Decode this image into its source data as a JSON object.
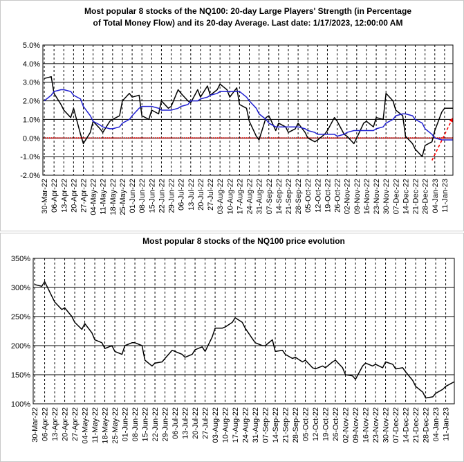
{
  "chart_data": [
    {
      "type": "line",
      "title": [
        "Most popular 8 stocks of the NQ100: 20-day Large Players' Strength (in Percentage",
        "of Total Money Flow) and its 20-day Average. Last date: 1/17/2023, 12:00:00 AM"
      ],
      "x": [
        "2022-03-30",
        "2022-04-04",
        "2022-04-06",
        "2022-04-11",
        "2022-04-13",
        "2022-04-18",
        "2022-04-20",
        "2022-04-25",
        "2022-04-27",
        "2022-05-02",
        "2022-05-04",
        "2022-05-09",
        "2022-05-11",
        "2022-05-16",
        "2022-05-18",
        "2022-05-23",
        "2022-05-25",
        "2022-05-30",
        "2022-06-01",
        "2022-06-06",
        "2022-06-08",
        "2022-06-13",
        "2022-06-15",
        "2022-06-20",
        "2022-06-22",
        "2022-06-27",
        "2022-06-29",
        "2022-07-04",
        "2022-07-06",
        "2022-07-11",
        "2022-07-13",
        "2022-07-18",
        "2022-07-20",
        "2022-07-25",
        "2022-07-27",
        "2022-08-01",
        "2022-08-03",
        "2022-08-08",
        "2022-08-10",
        "2022-08-15",
        "2022-08-17",
        "2022-08-22",
        "2022-08-24",
        "2022-08-29",
        "2022-08-31",
        "2022-09-05",
        "2022-09-07",
        "2022-09-12",
        "2022-09-14",
        "2022-09-19",
        "2022-09-21",
        "2022-09-26",
        "2022-09-28",
        "2022-10-03",
        "2022-10-05",
        "2022-10-10",
        "2022-10-12",
        "2022-10-17",
        "2022-10-19",
        "2022-10-24",
        "2022-10-26",
        "2022-10-31",
        "2022-11-02",
        "2022-11-07",
        "2022-11-09",
        "2022-11-14",
        "2022-11-16",
        "2022-11-21",
        "2022-11-23",
        "2022-11-28",
        "2022-11-30",
        "2022-12-05",
        "2022-12-07",
        "2022-12-12",
        "2022-12-14",
        "2022-12-19",
        "2022-12-21",
        "2022-12-26",
        "2022-12-28",
        "2023-01-02",
        "2023-01-04",
        "2023-01-09",
        "2023-01-11",
        "2023-01-17"
      ],
      "series": [
        {
          "color": "#000000",
          "values": [
            3.2,
            3.3,
            2.4,
            1.8,
            1.5,
            1.1,
            1.6,
            0.2,
            -0.3,
            0.3,
            0.9,
            0.5,
            0.3,
            0.9,
            1.0,
            1.2,
            2.0,
            2.4,
            2.2,
            2.3,
            1.2,
            1.0,
            1.5,
            1.3,
            2.0,
            1.6,
            1.7,
            2.6,
            2.4,
            2.0,
            1.9,
            2.6,
            2.2,
            2.8,
            2.3,
            2.6,
            2.9,
            2.6,
            2.2,
            2.7,
            1.8,
            1.6,
            0.9,
            0.1,
            -0.1,
            1.1,
            1.2,
            0.4,
            0.8,
            0.6,
            0.3,
            0.5,
            0.8,
            0.3,
            0.0,
            -0.2,
            -0.1,
            0.2,
            0.4,
            1.1,
            0.9,
            0.2,
            0.1,
            -0.3,
            0.0,
            0.8,
            0.9,
            0.6,
            1.1,
            1.0,
            2.4,
            2.0,
            1.5,
            1.2,
            0.1,
            -0.3,
            -0.6,
            -1.0,
            -0.4,
            -0.2,
            0.4,
            1.4,
            1.6,
            1.6
          ]
        },
        {
          "color": "#1f1fd0",
          "values": [
            2.0,
            2.3,
            2.5,
            2.6,
            2.6,
            2.5,
            2.3,
            2.1,
            1.7,
            1.2,
            0.9,
            0.7,
            0.6,
            0.5,
            0.5,
            0.6,
            0.8,
            1.0,
            1.2,
            1.6,
            1.7,
            1.7,
            1.7,
            1.6,
            1.5,
            1.5,
            1.5,
            1.6,
            1.7,
            1.8,
            2.0,
            2.0,
            2.1,
            2.2,
            2.3,
            2.4,
            2.5,
            2.5,
            2.5,
            2.5,
            2.5,
            2.2,
            2.0,
            1.6,
            1.3,
            1.0,
            0.8,
            0.6,
            0.6,
            0.6,
            0.6,
            0.6,
            0.6,
            0.5,
            0.4,
            0.3,
            0.2,
            0.2,
            0.2,
            0.2,
            0.1,
            0.2,
            0.3,
            0.4,
            0.4,
            0.4,
            0.4,
            0.4,
            0.5,
            0.6,
            0.8,
            1.0,
            1.2,
            1.3,
            1.3,
            1.2,
            1.0,
            0.8,
            0.5,
            0.2,
            0.0,
            -0.1,
            -0.1,
            -0.1
          ]
        }
      ],
      "reference_line": {
        "y": 0,
        "color": "#e00000"
      },
      "arrow": {
        "x": [
          "2023-01-02",
          "2023-01-17"
        ],
        "y": [
          -1.2,
          1.1
        ],
        "color": "#ff0000"
      },
      "xlim": [
        "2022-03-29",
        "2023-01-17"
      ],
      "xticks": [
        {
          "value": "2022-03-30",
          "label": "30-Mar-22"
        },
        {
          "value": "2022-04-06",
          "label": "06-Apr-22"
        },
        {
          "value": "2022-04-13",
          "label": "13-Apr-22"
        },
        {
          "value": "2022-04-20",
          "label": "20-Apr-22"
        },
        {
          "value": "2022-04-27",
          "label": "27-Apr-22"
        },
        {
          "value": "2022-05-04",
          "label": "04-May-22"
        },
        {
          "value": "2022-05-11",
          "label": "11-May-22"
        },
        {
          "value": "2022-05-18",
          "label": "18-May-22"
        },
        {
          "value": "2022-05-25",
          "label": "25-May-22"
        },
        {
          "value": "2022-06-01",
          "label": "01-Jun-22"
        },
        {
          "value": "2022-06-08",
          "label": "08-Jun-22"
        },
        {
          "value": "2022-06-15",
          "label": "15-Jun-22"
        },
        {
          "value": "2022-06-22",
          "label": "22-Jun-22"
        },
        {
          "value": "2022-06-29",
          "label": "29-Jun-22"
        },
        {
          "value": "2022-07-06",
          "label": "06-Jul-22"
        },
        {
          "value": "2022-07-13",
          "label": "13-Jul-22"
        },
        {
          "value": "2022-07-20",
          "label": "20-Jul-22"
        },
        {
          "value": "2022-07-27",
          "label": "27-Jul-22"
        },
        {
          "value": "2022-08-03",
          "label": "03-Aug-22"
        },
        {
          "value": "2022-08-10",
          "label": "10-Aug-22"
        },
        {
          "value": "2022-08-17",
          "label": "17-Aug-22"
        },
        {
          "value": "2022-08-24",
          "label": "24-Aug-22"
        },
        {
          "value": "2022-08-31",
          "label": "31-Aug-22"
        },
        {
          "value": "2022-09-07",
          "label": "07-Sep-22"
        },
        {
          "value": "2022-09-14",
          "label": "14-Sep-22"
        },
        {
          "value": "2022-09-21",
          "label": "21-Sep-22"
        },
        {
          "value": "2022-09-28",
          "label": "28-Sep-22"
        },
        {
          "value": "2022-10-05",
          "label": "05-Oct-22"
        },
        {
          "value": "2022-10-12",
          "label": "12-Oct-22"
        },
        {
          "value": "2022-10-19",
          "label": "19-Oct-22"
        },
        {
          "value": "2022-10-26",
          "label": "26-Oct-22"
        },
        {
          "value": "2022-11-02",
          "label": "02-Nov-22"
        },
        {
          "value": "2022-11-09",
          "label": "09-Nov-22"
        },
        {
          "value": "2022-11-16",
          "label": "16-Nov-22"
        },
        {
          "value": "2022-11-23",
          "label": "23-Nov-22"
        },
        {
          "value": "2022-11-30",
          "label": "30-Nov-22"
        },
        {
          "value": "2022-12-07",
          "label": "07-Dec-22"
        },
        {
          "value": "2022-12-14",
          "label": "14-Dec-22"
        },
        {
          "value": "2022-12-21",
          "label": "21-Dec-22"
        },
        {
          "value": "2022-12-28",
          "label": "28-Dec-22"
        },
        {
          "value": "2023-01-04",
          "label": "04-Jan-23"
        },
        {
          "value": "2023-01-11",
          "label": "11-Jan-23"
        }
      ],
      "ylim": [
        -2,
        5
      ],
      "yticks": [
        {
          "value": 5,
          "label": "5.0%"
        },
        {
          "value": 4,
          "label": "4.0%"
        },
        {
          "value": 3,
          "label": "3.0%"
        },
        {
          "value": 2,
          "label": "2.0%"
        },
        {
          "value": 1,
          "label": "1.0%"
        },
        {
          "value": 0,
          "label": "0.0%"
        },
        {
          "value": -1,
          "label": "-1.0%"
        },
        {
          "value": -2,
          "label": "-2.0%"
        }
      ],
      "grid": true
    },
    {
      "type": "line",
      "title": [
        "Most popular 8 stocks of the NQ100 price evolution"
      ],
      "x": [
        "2022-03-30",
        "2022-04-04",
        "2022-04-06",
        "2022-04-11",
        "2022-04-13",
        "2022-04-18",
        "2022-04-20",
        "2022-04-25",
        "2022-04-27",
        "2022-05-02",
        "2022-05-04",
        "2022-05-09",
        "2022-05-11",
        "2022-05-16",
        "2022-05-18",
        "2022-05-23",
        "2022-05-25",
        "2022-05-30",
        "2022-06-01",
        "2022-06-06",
        "2022-06-08",
        "2022-06-13",
        "2022-06-15",
        "2022-06-20",
        "2022-06-22",
        "2022-06-27",
        "2022-06-29",
        "2022-07-04",
        "2022-07-06",
        "2022-07-11",
        "2022-07-13",
        "2022-07-18",
        "2022-07-20",
        "2022-07-25",
        "2022-07-27",
        "2022-08-01",
        "2022-08-03",
        "2022-08-08",
        "2022-08-10",
        "2022-08-15",
        "2022-08-17",
        "2022-08-22",
        "2022-08-24",
        "2022-08-29",
        "2022-08-31",
        "2022-09-05",
        "2022-09-07",
        "2022-09-12",
        "2022-09-14",
        "2022-09-19",
        "2022-09-21",
        "2022-09-26",
        "2022-09-28",
        "2022-10-03",
        "2022-10-05",
        "2022-10-10",
        "2022-10-12",
        "2022-10-17",
        "2022-10-19",
        "2022-10-24",
        "2022-10-26",
        "2022-10-31",
        "2022-11-02",
        "2022-11-07",
        "2022-11-09",
        "2022-11-14",
        "2022-11-16",
        "2022-11-21",
        "2022-11-23",
        "2022-11-28",
        "2022-11-30",
        "2022-12-05",
        "2022-12-07",
        "2022-12-12",
        "2022-12-14",
        "2022-12-19",
        "2022-12-21",
        "2022-12-26",
        "2022-12-28",
        "2023-01-02",
        "2023-01-04",
        "2023-01-09",
        "2023-01-11",
        "2023-01-17"
      ],
      "series": [
        {
          "color": "#000000",
          "values": [
            305,
            302,
            310,
            285,
            275,
            262,
            265,
            250,
            240,
            228,
            238,
            222,
            210,
            205,
            195,
            200,
            190,
            185,
            200,
            205,
            205,
            200,
            175,
            165,
            170,
            172,
            178,
            192,
            190,
            185,
            180,
            185,
            193,
            198,
            190,
            215,
            230,
            230,
            232,
            240,
            248,
            240,
            230,
            212,
            205,
            200,
            200,
            210,
            190,
            192,
            185,
            178,
            180,
            172,
            175,
            162,
            160,
            165,
            162,
            172,
            175,
            162,
            150,
            148,
            142,
            165,
            170,
            165,
            168,
            162,
            172,
            168,
            160,
            162,
            155,
            140,
            130,
            120,
            110,
            112,
            118,
            125,
            130,
            138
          ]
        }
      ],
      "xlim": [
        "2022-03-29",
        "2023-01-17"
      ],
      "xticks": [
        {
          "value": "2022-03-30",
          "label": "30-Mar-22"
        },
        {
          "value": "2022-04-06",
          "label": "06-Apr-22"
        },
        {
          "value": "2022-04-13",
          "label": "13-Apr-22"
        },
        {
          "value": "2022-04-20",
          "label": "20-Apr-22"
        },
        {
          "value": "2022-04-27",
          "label": "27-Apr-22"
        },
        {
          "value": "2022-05-04",
          "label": "04-May-22"
        },
        {
          "value": "2022-05-11",
          "label": "11-May-22"
        },
        {
          "value": "2022-05-18",
          "label": "18-May-22"
        },
        {
          "value": "2022-05-25",
          "label": "25-May-22"
        },
        {
          "value": "2022-06-01",
          "label": "01-Jun-22"
        },
        {
          "value": "2022-06-08",
          "label": "08-Jun-22"
        },
        {
          "value": "2022-06-15",
          "label": "15-Jun-22"
        },
        {
          "value": "2022-06-22",
          "label": "22-Jun-22"
        },
        {
          "value": "2022-06-29",
          "label": "29-Jun-22"
        },
        {
          "value": "2022-07-06",
          "label": "06-Jul-22"
        },
        {
          "value": "2022-07-13",
          "label": "13-Jul-22"
        },
        {
          "value": "2022-07-20",
          "label": "20-Jul-22"
        },
        {
          "value": "2022-07-27",
          "label": "27-Jul-22"
        },
        {
          "value": "2022-08-03",
          "label": "03-Aug-22"
        },
        {
          "value": "2022-08-10",
          "label": "10-Aug-22"
        },
        {
          "value": "2022-08-17",
          "label": "17-Aug-22"
        },
        {
          "value": "2022-08-24",
          "label": "24-Aug-22"
        },
        {
          "value": "2022-08-31",
          "label": "31-Aug-22"
        },
        {
          "value": "2022-09-07",
          "label": "07-Sep-22"
        },
        {
          "value": "2022-09-14",
          "label": "14-Sep-22"
        },
        {
          "value": "2022-09-21",
          "label": "21-Sep-22"
        },
        {
          "value": "2022-09-28",
          "label": "28-Sep-22"
        },
        {
          "value": "2022-10-05",
          "label": "05-Oct-22"
        },
        {
          "value": "2022-10-12",
          "label": "12-Oct-22"
        },
        {
          "value": "2022-10-19",
          "label": "19-Oct-22"
        },
        {
          "value": "2022-10-26",
          "label": "26-Oct-22"
        },
        {
          "value": "2022-11-02",
          "label": "02-Nov-22"
        },
        {
          "value": "2022-11-09",
          "label": "09-Nov-22"
        },
        {
          "value": "2022-11-16",
          "label": "16-Nov-22"
        },
        {
          "value": "2022-11-23",
          "label": "23-Nov-22"
        },
        {
          "value": "2022-11-30",
          "label": "30-Nov-22"
        },
        {
          "value": "2022-12-07",
          "label": "07-Dec-22"
        },
        {
          "value": "2022-12-14",
          "label": "14-Dec-22"
        },
        {
          "value": "2022-12-21",
          "label": "21-Dec-22"
        },
        {
          "value": "2022-12-28",
          "label": "28-Dec-22"
        },
        {
          "value": "2023-01-04",
          "label": "04-Jan-23"
        },
        {
          "value": "2023-01-11",
          "label": "11-Jan-23"
        }
      ],
      "ylim": [
        100,
        350
      ],
      "yticks": [
        {
          "value": 350,
          "label": "350%"
        },
        {
          "value": 300,
          "label": "300%"
        },
        {
          "value": 250,
          "label": "250%"
        },
        {
          "value": 200,
          "label": "200%"
        },
        {
          "value": 150,
          "label": "150%"
        },
        {
          "value": 100,
          "label": "100%"
        }
      ],
      "grid": true
    }
  ]
}
